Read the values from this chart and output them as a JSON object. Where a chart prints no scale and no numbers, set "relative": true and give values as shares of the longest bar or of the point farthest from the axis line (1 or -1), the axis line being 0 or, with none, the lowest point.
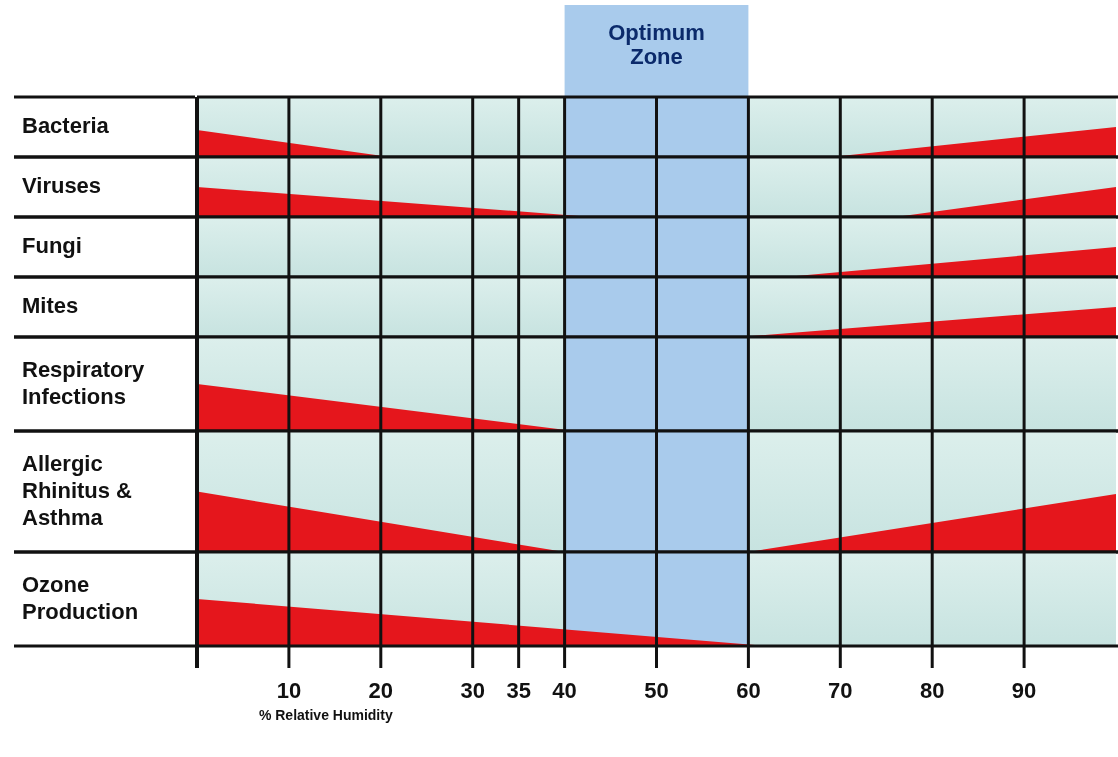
{
  "chart_data": [
    {
      "type": "area",
      "ylabel": "Bacteria",
      "relative": true,
      "x": [
        0,
        21,
        69,
        100
      ],
      "series": [
        {
          "color": "#e5161c",
          "values": [
            0.9,
            0,
            0,
            1
          ]
        }
      ],
      "xlim": [
        0,
        100
      ],
      "xticks": [
        10,
        20,
        30,
        35,
        40,
        50,
        60,
        70,
        80,
        90
      ],
      "grid": "x",
      "tick_labels": false,
      "bands": [
        {
          "axis": "x",
          "from": 40,
          "to": 60,
          "label": "Optimum Zone",
          "color": "#a9cbec"
        }
      ]
    },
    {
      "type": "area",
      "ylabel": "Viruses",
      "relative": true,
      "x": [
        0,
        43,
        76,
        100
      ],
      "series": [
        {
          "color": "#e5161c",
          "values": [
            1,
            0,
            0,
            1
          ]
        }
      ],
      "xlim": [
        0,
        100
      ],
      "xticks": [
        10,
        20,
        30,
        35,
        40,
        50,
        60,
        70,
        80,
        90
      ],
      "grid": "x",
      "tick_labels": false,
      "bands": [
        {
          "axis": "x",
          "from": 40,
          "to": 60,
          "color": "#a9cbec"
        }
      ]
    },
    {
      "type": "area",
      "ylabel": "Fungi",
      "relative": true,
      "x": [
        0,
        64,
        100
      ],
      "series": [
        {
          "color": "#e5161c",
          "values": [
            0,
            0,
            1
          ]
        }
      ],
      "xlim": [
        0,
        100
      ],
      "xticks": [
        10,
        20,
        30,
        35,
        40,
        50,
        60,
        70,
        80,
        90
      ],
      "grid": "x",
      "tick_labels": false,
      "bands": [
        {
          "axis": "x",
          "from": 40,
          "to": 60,
          "color": "#a9cbec"
        }
      ]
    },
    {
      "type": "area",
      "ylabel": "Mites",
      "relative": true,
      "x": [
        0,
        59,
        100
      ],
      "series": [
        {
          "color": "#e5161c",
          "values": [
            0,
            0,
            1
          ]
        }
      ],
      "xlim": [
        0,
        100
      ],
      "xticks": [
        10,
        20,
        30,
        35,
        40,
        50,
        60,
        70,
        80,
        90
      ],
      "grid": "x",
      "tick_labels": false,
      "bands": [
        {
          "axis": "x",
          "from": 40,
          "to": 60,
          "color": "#a9cbec"
        }
      ]
    },
    {
      "type": "area",
      "ylabel": "Respiratory Infections",
      "relative": true,
      "x": [
        0,
        41,
        100
      ],
      "series": [
        {
          "color": "#e5161c",
          "values": [
            1,
            0,
            0
          ]
        }
      ],
      "xlim": [
        0,
        100
      ],
      "xticks": [
        10,
        20,
        30,
        35,
        40,
        50,
        60,
        70,
        80,
        90
      ],
      "grid": "x",
      "tick_labels": false,
      "bands": [
        {
          "axis": "x",
          "from": 40,
          "to": 60,
          "color": "#a9cbec"
        }
      ]
    },
    {
      "type": "area",
      "ylabel": "Allergic Rhinitus & Asthma",
      "relative": true,
      "x": [
        0,
        40,
        60,
        100
      ],
      "series": [
        {
          "color": "#e5161c",
          "values": [
            1,
            0,
            0,
            0.96
          ]
        }
      ],
      "xlim": [
        0,
        100
      ],
      "xticks": [
        10,
        20,
        30,
        35,
        40,
        50,
        60,
        70,
        80,
        90
      ],
      "grid": "x",
      "tick_labels": false,
      "bands": [
        {
          "axis": "x",
          "from": 40,
          "to": 60,
          "color": "#a9cbec"
        }
      ]
    },
    {
      "type": "area",
      "ylabel": "Ozone Production",
      "xlabel": "% Relative Humidity",
      "relative": true,
      "x": [
        0,
        62,
        100
      ],
      "series": [
        {
          "color": "#e5161c",
          "values": [
            1,
            0,
            0
          ]
        }
      ],
      "xlim": [
        0,
        100
      ],
      "xticks": [
        10,
        20,
        30,
        35,
        40,
        50,
        60,
        70,
        80,
        90
      ],
      "grid": "x",
      "tick_labels": "x",
      "bands": [
        {
          "axis": "x",
          "from": 40,
          "to": 60,
          "color": "#a9cbec"
        }
      ]
    }
  ]
}
